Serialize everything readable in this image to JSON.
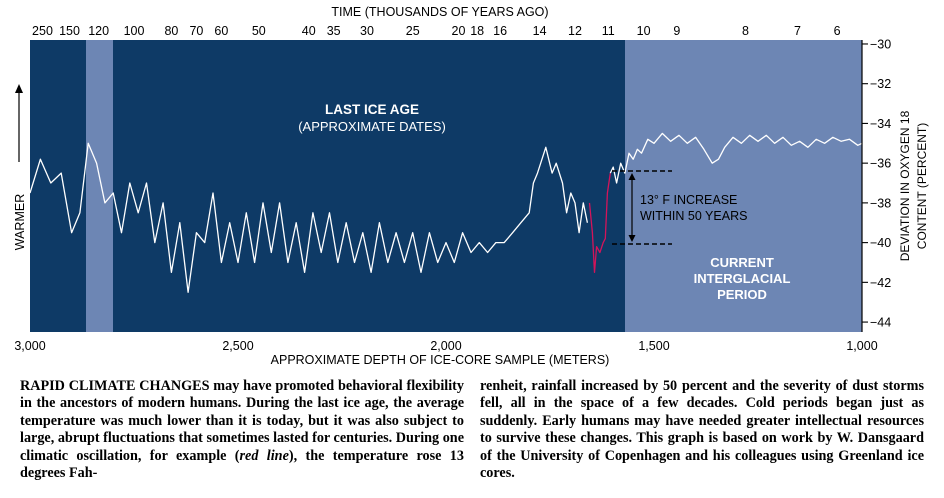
{
  "chart_data": {
    "type": "line",
    "title": "TIME (THOUSANDS OF YEARS AGO)",
    "top_ticks": [
      "250",
      "150",
      "120",
      "100",
      "80",
      "70",
      "60",
      "50",
      "40",
      "35",
      "30",
      "25",
      "20",
      "18",
      "16",
      "14",
      "12",
      "11",
      "10",
      "9",
      "8",
      "7",
      "6"
    ],
    "xlabel": "APPROXIMATE DEPTH OF ICE-CORE SAMPLE (METERS)",
    "x_ticks": [
      "3,000",
      "2,500",
      "2,000",
      "1,500",
      "1,000"
    ],
    "xlim": [
      3000,
      1000
    ],
    "ylabel": "DEVIATION IN OXYGEN 18 CONTENT (PERCENT)",
    "y_ticks": [
      "−30",
      "−32",
      "−34",
      "−36",
      "−38",
      "−40",
      "−42",
      "−44"
    ],
    "ylim": [
      -44.5,
      -29.8
    ],
    "left_label": "WARMER",
    "regions": [
      {
        "label": "LAST ICE AGE",
        "sublabel": "(APPROXIMATE DATES)",
        "color": "#0e3a66"
      },
      {
        "label": "CURRENT",
        "sublabel": "INTERGLACIAL",
        "sublabel2": "PERIOD",
        "color": "#6d86b4"
      }
    ],
    "annotation": {
      "line1": "13° F INCREASE",
      "line2": "WITHIN 50 YEARS"
    },
    "series": [
      {
        "color": "#ffffff",
        "points": [
          [
            3000,
            -37.5
          ],
          [
            2975,
            -35.8
          ],
          [
            2950,
            -37.0
          ],
          [
            2925,
            -36.5
          ],
          [
            2900,
            -39.5
          ],
          [
            2880,
            -38.5
          ],
          [
            2860,
            -35.0
          ],
          [
            2840,
            -36.0
          ],
          [
            2820,
            -38.0
          ],
          [
            2800,
            -37.5
          ],
          [
            2780,
            -39.5
          ],
          [
            2760,
            -37.0
          ],
          [
            2740,
            -38.5
          ],
          [
            2720,
            -37.0
          ],
          [
            2700,
            -40.0
          ],
          [
            2680,
            -38.0
          ],
          [
            2660,
            -41.5
          ],
          [
            2640,
            -39.0
          ],
          [
            2620,
            -42.5
          ],
          [
            2600,
            -39.5
          ],
          [
            2580,
            -40.0
          ],
          [
            2560,
            -37.5
          ],
          [
            2540,
            -41.0
          ],
          [
            2520,
            -39.0
          ],
          [
            2500,
            -41.0
          ],
          [
            2480,
            -38.5
          ],
          [
            2460,
            -41.0
          ],
          [
            2440,
            -38.0
          ],
          [
            2420,
            -40.5
          ],
          [
            2400,
            -38.0
          ],
          [
            2380,
            -41.0
          ],
          [
            2360,
            -39.0
          ],
          [
            2340,
            -41.5
          ],
          [
            2320,
            -38.5
          ],
          [
            2300,
            -40.5
          ],
          [
            2280,
            -38.5
          ],
          [
            2260,
            -41.0
          ],
          [
            2240,
            -39.0
          ],
          [
            2220,
            -41.0
          ],
          [
            2200,
            -39.5
          ],
          [
            2180,
            -41.5
          ],
          [
            2160,
            -39.0
          ],
          [
            2140,
            -41.0
          ],
          [
            2120,
            -39.5
          ],
          [
            2100,
            -41.0
          ],
          [
            2080,
            -39.5
          ],
          [
            2060,
            -41.5
          ],
          [
            2040,
            -39.5
          ],
          [
            2020,
            -41.0
          ],
          [
            2000,
            -40.0
          ],
          [
            1980,
            -41.0
          ],
          [
            1960,
            -39.5
          ],
          [
            1940,
            -40.5
          ],
          [
            1920,
            -40.0
          ],
          [
            1900,
            -40.5
          ],
          [
            1880,
            -40.0
          ],
          [
            1860,
            -40.0
          ],
          [
            1840,
            -39.5
          ],
          [
            1820,
            -39.0
          ],
          [
            1800,
            -38.5
          ],
          [
            1790,
            -37.0
          ],
          [
            1780,
            -36.5
          ],
          [
            1760,
            -35.2
          ],
          [
            1745,
            -36.5
          ],
          [
            1735,
            -36.0
          ],
          [
            1720,
            -37.0
          ],
          [
            1710,
            -38.5
          ],
          [
            1700,
            -37.5
          ],
          [
            1690,
            -38.0
          ],
          [
            1680,
            -39.5
          ],
          [
            1670,
            -38.0
          ],
          [
            1660,
            -39.0
          ]
        ]
      },
      {
        "color": "#d4145a",
        "points": [
          [
            1655,
            -38.0
          ],
          [
            1648,
            -39.5
          ],
          [
            1643,
            -41.5
          ],
          [
            1638,
            -40.2
          ],
          [
            1630,
            -40.5
          ],
          [
            1622,
            -40.0
          ],
          [
            1617,
            -39.8
          ],
          [
            1612,
            -37.5
          ],
          [
            1605,
            -36.5
          ]
        ]
      },
      {
        "color": "#ffffff",
        "points": [
          [
            1605,
            -36.5
          ],
          [
            1598,
            -36.2
          ],
          [
            1590,
            -37.0
          ],
          [
            1580,
            -36.0
          ],
          [
            1570,
            -36.5
          ],
          [
            1560,
            -35.5
          ],
          [
            1550,
            -35.8
          ],
          [
            1540,
            -35.3
          ],
          [
            1530,
            -35.5
          ],
          [
            1515,
            -34.8
          ],
          [
            1500,
            -35.0
          ],
          [
            1480,
            -34.5
          ],
          [
            1460,
            -34.9
          ],
          [
            1440,
            -34.6
          ],
          [
            1420,
            -35.0
          ],
          [
            1400,
            -34.7
          ],
          [
            1380,
            -35.3
          ],
          [
            1360,
            -36.0
          ],
          [
            1345,
            -35.8
          ],
          [
            1330,
            -35.2
          ],
          [
            1310,
            -34.7
          ],
          [
            1290,
            -35.0
          ],
          [
            1270,
            -34.6
          ],
          [
            1250,
            -34.9
          ],
          [
            1230,
            -34.6
          ],
          [
            1210,
            -35.0
          ],
          [
            1190,
            -34.7
          ],
          [
            1170,
            -35.1
          ],
          [
            1150,
            -34.9
          ],
          [
            1130,
            -35.2
          ],
          [
            1110,
            -34.8
          ],
          [
            1090,
            -35.0
          ],
          [
            1070,
            -34.7
          ],
          [
            1050,
            -34.9
          ],
          [
            1030,
            -34.8
          ],
          [
            1010,
            -35.1
          ],
          [
            1000,
            -35.0
          ]
        ]
      }
    ]
  },
  "caption": {
    "lead": "RAPID CLIMATE CHANGES",
    "left_body": " may have promoted behavioral flexibility in the ancestors of modern humans. During the last ice age, the average temperature was much lower than it is today, but it was also subject to large, abrupt fluctuations that sometimes lasted for centuries. During one climatic oscillation, for example (",
    "red_line": "red line",
    "left_tail": "), the temperature rose 13 degrees Fah-",
    "right_body": "renheit, rainfall increased by 50 percent and the severity of dust storms fell, all in the space of a few decades. Cold periods began just as suddenly. Early humans may have needed greater intellectual resources to survive these changes. This graph is based on work by W. Dansgaard of the University of Copenhagen and his colleagues using Greenland ice cores."
  }
}
